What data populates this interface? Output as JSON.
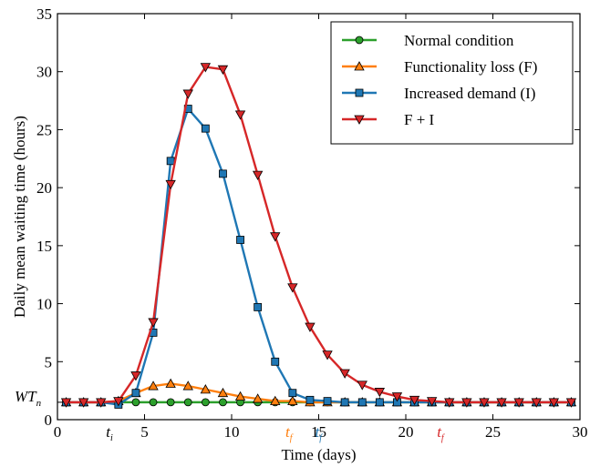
{
  "chart_data": {
    "type": "line",
    "xlabel": "Time (days)",
    "ylabel": "Daily mean waiting time (hours)",
    "xlim": [
      0,
      30
    ],
    "ylim": [
      0,
      35
    ],
    "xticks": [
      0,
      5,
      10,
      15,
      20,
      25,
      30
    ],
    "yticks": [
      0,
      5,
      10,
      15,
      20,
      25,
      30,
      35
    ],
    "grid": false,
    "legend_position": "top-right",
    "baseline_label": "WTn",
    "baseline_label_main": "WT",
    "baseline_label_sub": "n",
    "baseline_value": 1.5,
    "x": [
      0.5,
      1.5,
      2.5,
      3.5,
      4.5,
      5.5,
      6.5,
      7.5,
      8.5,
      9.5,
      10.5,
      11.5,
      12.5,
      13.5,
      14.5,
      15.5,
      16.5,
      17.5,
      18.5,
      19.5,
      20.5,
      21.5,
      22.5,
      23.5,
      24.5,
      25.5,
      26.5,
      27.5,
      28.5,
      29.5
    ],
    "series": [
      {
        "name": "Normal condition",
        "color": "#2ca02c",
        "marker": "circle",
        "values": [
          1.5,
          1.5,
          1.5,
          1.5,
          1.5,
          1.5,
          1.5,
          1.5,
          1.5,
          1.5,
          1.5,
          1.5,
          1.5,
          1.5,
          1.5,
          1.5,
          1.5,
          1.5,
          1.5,
          1.5,
          1.5,
          1.5,
          1.5,
          1.5,
          1.5,
          1.5,
          1.5,
          1.5,
          1.5,
          1.5
        ]
      },
      {
        "name": "Functionality loss (F)",
        "color": "#ff7f0e",
        "marker": "triangle-up",
        "values": [
          1.5,
          1.5,
          1.5,
          1.6,
          2.3,
          2.9,
          3.1,
          2.9,
          2.6,
          2.3,
          2.0,
          1.8,
          1.6,
          1.6,
          1.5,
          1.5,
          1.5,
          1.5,
          1.5,
          1.5,
          1.5,
          1.5,
          1.5,
          1.5,
          1.5,
          1.5,
          1.5,
          1.5,
          1.5,
          1.5
        ]
      },
      {
        "name": "Increased demand (I)",
        "color": "#1f77b4",
        "marker": "square",
        "values": [
          1.5,
          1.5,
          1.5,
          1.3,
          2.3,
          7.5,
          22.3,
          26.8,
          25.1,
          21.2,
          15.5,
          9.7,
          5.0,
          2.3,
          1.7,
          1.6,
          1.5,
          1.5,
          1.5,
          1.5,
          1.5,
          1.5,
          1.5,
          1.5,
          1.5,
          1.5,
          1.5,
          1.5,
          1.5,
          1.5
        ]
      },
      {
        "name": "F + I",
        "color": "#d62728",
        "marker": "triangle-down",
        "values": [
          1.5,
          1.5,
          1.5,
          1.6,
          3.8,
          8.4,
          20.3,
          28.1,
          30.4,
          30.2,
          26.3,
          21.1,
          15.8,
          11.4,
          8.0,
          5.6,
          4.0,
          3.0,
          2.4,
          2.0,
          1.7,
          1.6,
          1.5,
          1.5,
          1.5,
          1.5,
          1.5,
          1.5,
          1.5,
          1.5
        ]
      }
    ],
    "time_markers": [
      {
        "label": "ti",
        "main": "t",
        "sub": "i",
        "x": 3.0,
        "color": "#000000"
      },
      {
        "label": "tf",
        "main": "t",
        "sub": "f",
        "x": 13.3,
        "color": "#ff7f0e"
      },
      {
        "label": "tf",
        "main": "t",
        "sub": "f",
        "x": 15.0,
        "color": "#1f77b4"
      },
      {
        "label": "tf",
        "main": "t",
        "sub": "f",
        "x": 22.0,
        "color": "#d62728"
      }
    ]
  }
}
